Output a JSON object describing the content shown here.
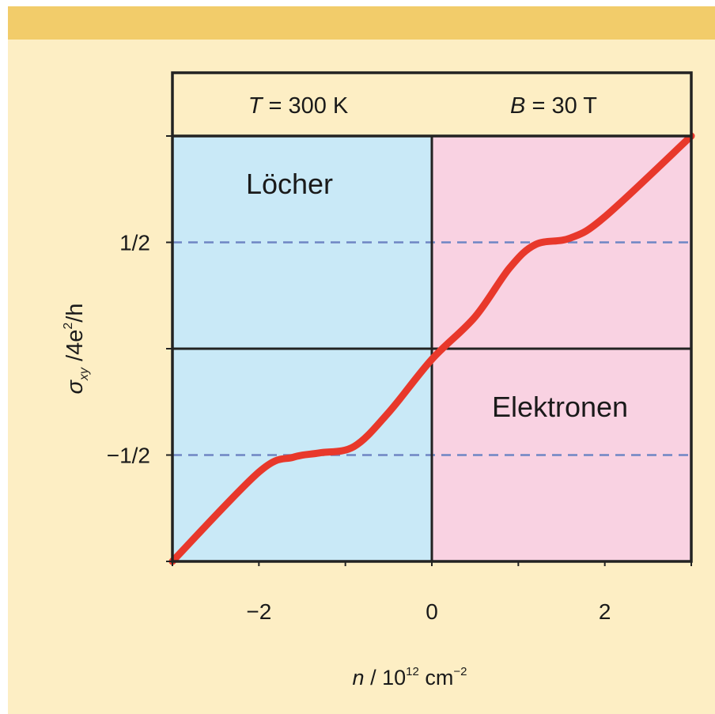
{
  "colors": {
    "panel_background": "#fdeec4",
    "top_band": "#f2cc6a",
    "holes_region": "#c9e9f7",
    "electrons_region": "#f9d2e2",
    "curve": "#e8382b",
    "dashed_lines": "#6f86c4",
    "frame": "#222222"
  },
  "chart_data": {
    "type": "line",
    "header_left": {
      "var": "T",
      "rest": " = 300 K"
    },
    "header_right": {
      "var": "B",
      "rest": " = 30 T"
    },
    "region_labels": {
      "holes": "Löcher",
      "electrons": "Elektronen"
    },
    "xlabel": {
      "var": "n",
      "sep": " / ",
      "base": "10",
      "exp": "12",
      "unit": " cm",
      "unit_exp": "−2"
    },
    "ylabel": {
      "sym": "σ",
      "sub": "xy",
      "mid": " /4e",
      "sup": "2",
      "end": "/h"
    },
    "xlim": [
      -3,
      3
    ],
    "ylim": [
      -1,
      1
    ],
    "x_ticks": [
      -3,
      -2,
      -1,
      0,
      1,
      2,
      3
    ],
    "x_tick_labels": [
      {
        "value": -2,
        "label": "−2"
      },
      {
        "value": 0,
        "label": "0"
      },
      {
        "value": 2,
        "label": "2"
      }
    ],
    "y_ticks": [
      -1,
      -0.5,
      0,
      0.5,
      1
    ],
    "y_tick_labels": [
      {
        "value": 0.5,
        "label": "1/2"
      },
      {
        "value": -0.5,
        "label": "−1/2"
      }
    ],
    "dashed_levels": [
      0.5,
      -0.5
    ],
    "series": [
      {
        "x": [
          -3.0,
          -2.0,
          -1.6,
          -1.3,
          -0.9,
          -0.5,
          0.0,
          0.5,
          0.9,
          1.2,
          1.6,
          2.0,
          3.0
        ],
        "y": [
          -1.0,
          -0.58,
          -0.51,
          -0.49,
          -0.46,
          -0.3,
          -0.05,
          0.15,
          0.38,
          0.49,
          0.52,
          0.62,
          1.0
        ]
      }
    ]
  }
}
